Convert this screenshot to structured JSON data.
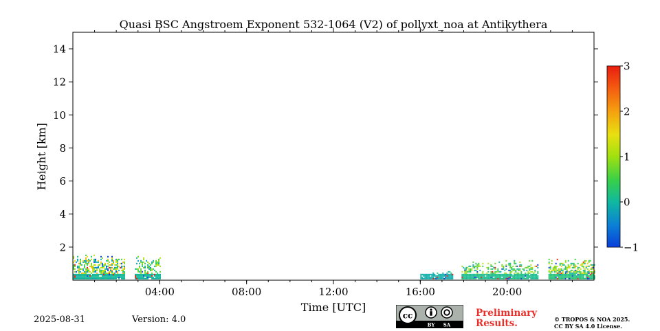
{
  "chart_data": {
    "type": "heatmap",
    "title": "Quasi BSC Angstroem Exponent 532-1064 (V2) of pollyxt_noa at Antikythera",
    "xlabel": "Time [UTC]",
    "ylabel": "Height [km]",
    "x_unit": "hours UTC",
    "xlim": [
      0,
      24
    ],
    "ylim": [
      0,
      15
    ],
    "x_ticks": [
      {
        "value": 4,
        "label": "04:00"
      },
      {
        "value": 8,
        "label": "08:00"
      },
      {
        "value": 12,
        "label": "12:00"
      },
      {
        "value": 16,
        "label": "16:00"
      },
      {
        "value": 20,
        "label": "20:00"
      }
    ],
    "y_ticks": [
      {
        "value": 2,
        "label": "2"
      },
      {
        "value": 4,
        "label": "4"
      },
      {
        "value": 6,
        "label": "6"
      },
      {
        "value": 8,
        "label": "8"
      },
      {
        "value": 10,
        "label": "10"
      },
      {
        "value": 12,
        "label": "12"
      },
      {
        "value": 14,
        "label": "14"
      }
    ],
    "colorbar": {
      "range": [
        -1,
        3
      ],
      "colormap": "jet",
      "ticks": [
        {
          "value": 3,
          "label": "3"
        },
        {
          "value": 2,
          "label": "2"
        },
        {
          "value": 1,
          "label": "1"
        },
        {
          "value": 0,
          "label": "0"
        },
        {
          "value": -1,
          "label": "−1"
        }
      ]
    },
    "data_blocks": [
      {
        "t_start": 0.0,
        "t_end": 2.35,
        "h_max": 1.6,
        "value_range": [
          -0.5,
          2.0
        ],
        "density": 0.8
      },
      {
        "t_start": 2.85,
        "t_end": 4.0,
        "h_max": 1.5,
        "value_range": [
          -0.3,
          1.2
        ],
        "density": 0.5
      },
      {
        "t_start": 16.0,
        "t_end": 17.5,
        "h_max": 0.5,
        "value_range": [
          -0.2,
          0.3
        ],
        "density": 0.7
      },
      {
        "t_start": 17.9,
        "t_end": 21.4,
        "h_max": 1.2,
        "value_range": [
          -0.2,
          1.3
        ],
        "density": 0.6
      },
      {
        "t_start": 21.9,
        "t_end": 24.0,
        "h_max": 1.3,
        "value_range": [
          -0.2,
          1.8
        ],
        "density": 0.75
      }
    ],
    "grid": false
  },
  "footer": {
    "date": "2025-08-31",
    "version": "Version: 4.0",
    "preliminary_line1": "Preliminary",
    "preliminary_line2": "Results.",
    "license_line1": "© TROPOS & NOA 2025.",
    "license_line2": "CC BY SA 4.0 License.",
    "cc_label": "cc",
    "by_label": "BY",
    "sa_label": "SA"
  }
}
